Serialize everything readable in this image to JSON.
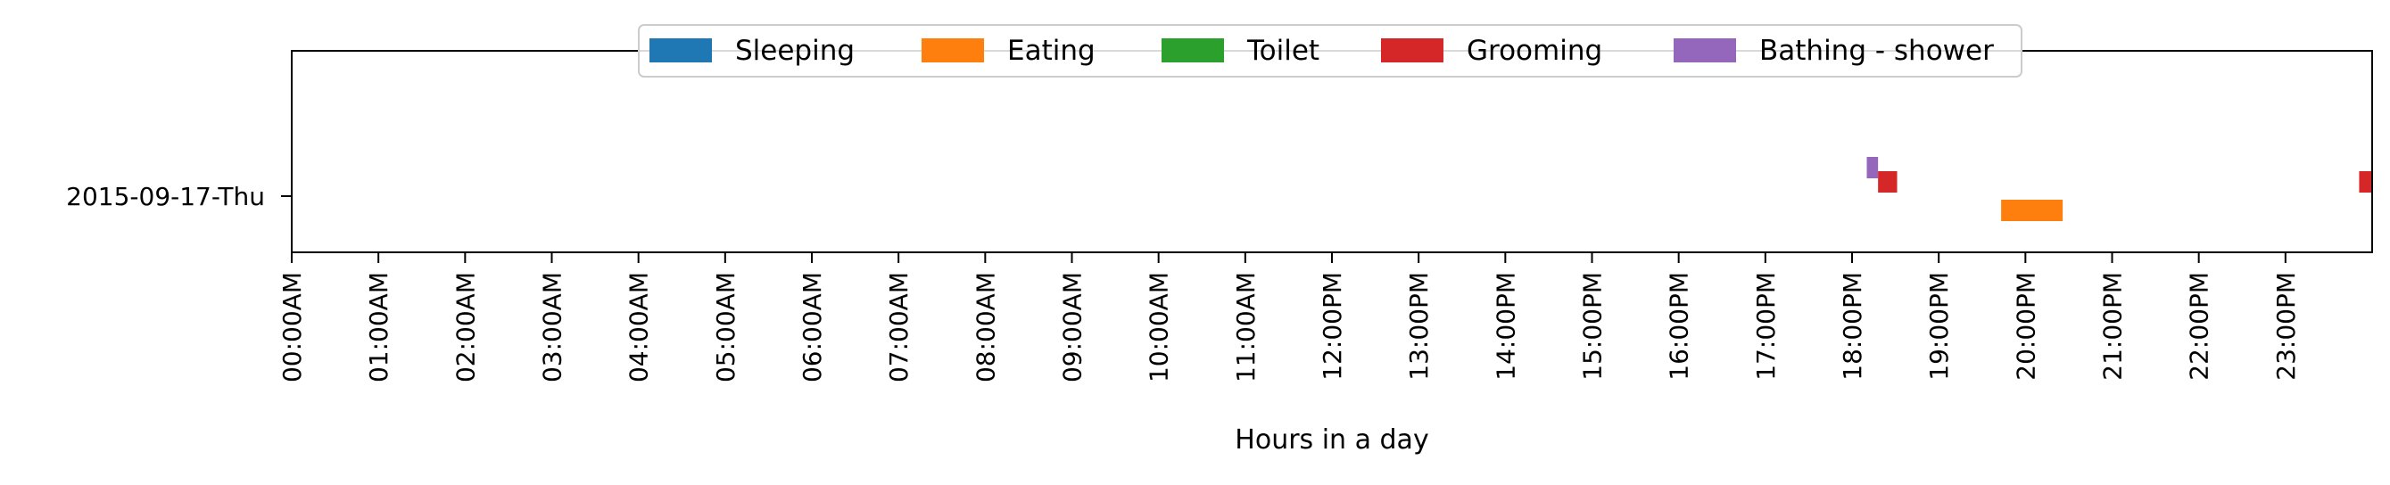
{
  "chart_data": {
    "type": "timeline",
    "xlabel": "Hours in a day",
    "ylabel": "",
    "xlim": [
      0,
      24
    ],
    "rows": [
      "2015-09-17-Thu"
    ],
    "ticks": [
      {
        "hour": 0,
        "label": "00:00AM"
      },
      {
        "hour": 1,
        "label": "01:00AM"
      },
      {
        "hour": 2,
        "label": "02:00AM"
      },
      {
        "hour": 3,
        "label": "03:00AM"
      },
      {
        "hour": 4,
        "label": "04:00AM"
      },
      {
        "hour": 5,
        "label": "05:00AM"
      },
      {
        "hour": 6,
        "label": "06:00AM"
      },
      {
        "hour": 7,
        "label": "07:00AM"
      },
      {
        "hour": 8,
        "label": "08:00AM"
      },
      {
        "hour": 9,
        "label": "09:00AM"
      },
      {
        "hour": 10,
        "label": "10:00AM"
      },
      {
        "hour": 11,
        "label": "11:00AM"
      },
      {
        "hour": 12,
        "label": "12:00PM"
      },
      {
        "hour": 13,
        "label": "13:00PM"
      },
      {
        "hour": 14,
        "label": "14:00PM"
      },
      {
        "hour": 15,
        "label": "15:00PM"
      },
      {
        "hour": 16,
        "label": "16:00PM"
      },
      {
        "hour": 17,
        "label": "17:00PM"
      },
      {
        "hour": 18,
        "label": "18:00PM"
      },
      {
        "hour": 19,
        "label": "19:00PM"
      },
      {
        "hour": 20,
        "label": "20:00PM"
      },
      {
        "hour": 21,
        "label": "21:00PM"
      },
      {
        "hour": 22,
        "label": "22:00PM"
      },
      {
        "hour": 23,
        "label": "23:00PM"
      }
    ],
    "legend": {
      "placement": "top-center",
      "items": [
        {
          "name": "Sleeping",
          "color": "#1f77b4"
        },
        {
          "name": "Eating",
          "color": "#ff7f0e"
        },
        {
          "name": "Toilet",
          "color": "#2ca02c"
        },
        {
          "name": "Grooming",
          "color": "#d62728"
        },
        {
          "name": "Bathing - shower",
          "color": "#9467bd"
        }
      ]
    },
    "activities": [
      "Sleeping",
      "Eating",
      "Toilet",
      "Grooming",
      "Bathing - shower"
    ],
    "events": [
      {
        "row": "2015-09-17-Thu",
        "activity": "Bathing - shower",
        "start": 18.17,
        "end": 18.3
      },
      {
        "row": "2015-09-17-Thu",
        "activity": "Grooming",
        "start": 18.3,
        "end": 18.52
      },
      {
        "row": "2015-09-17-Thu",
        "activity": "Eating",
        "start": 19.72,
        "end": 20.43
      },
      {
        "row": "2015-09-17-Thu",
        "activity": "Grooming",
        "start": 23.85,
        "end": 24.0
      }
    ]
  }
}
